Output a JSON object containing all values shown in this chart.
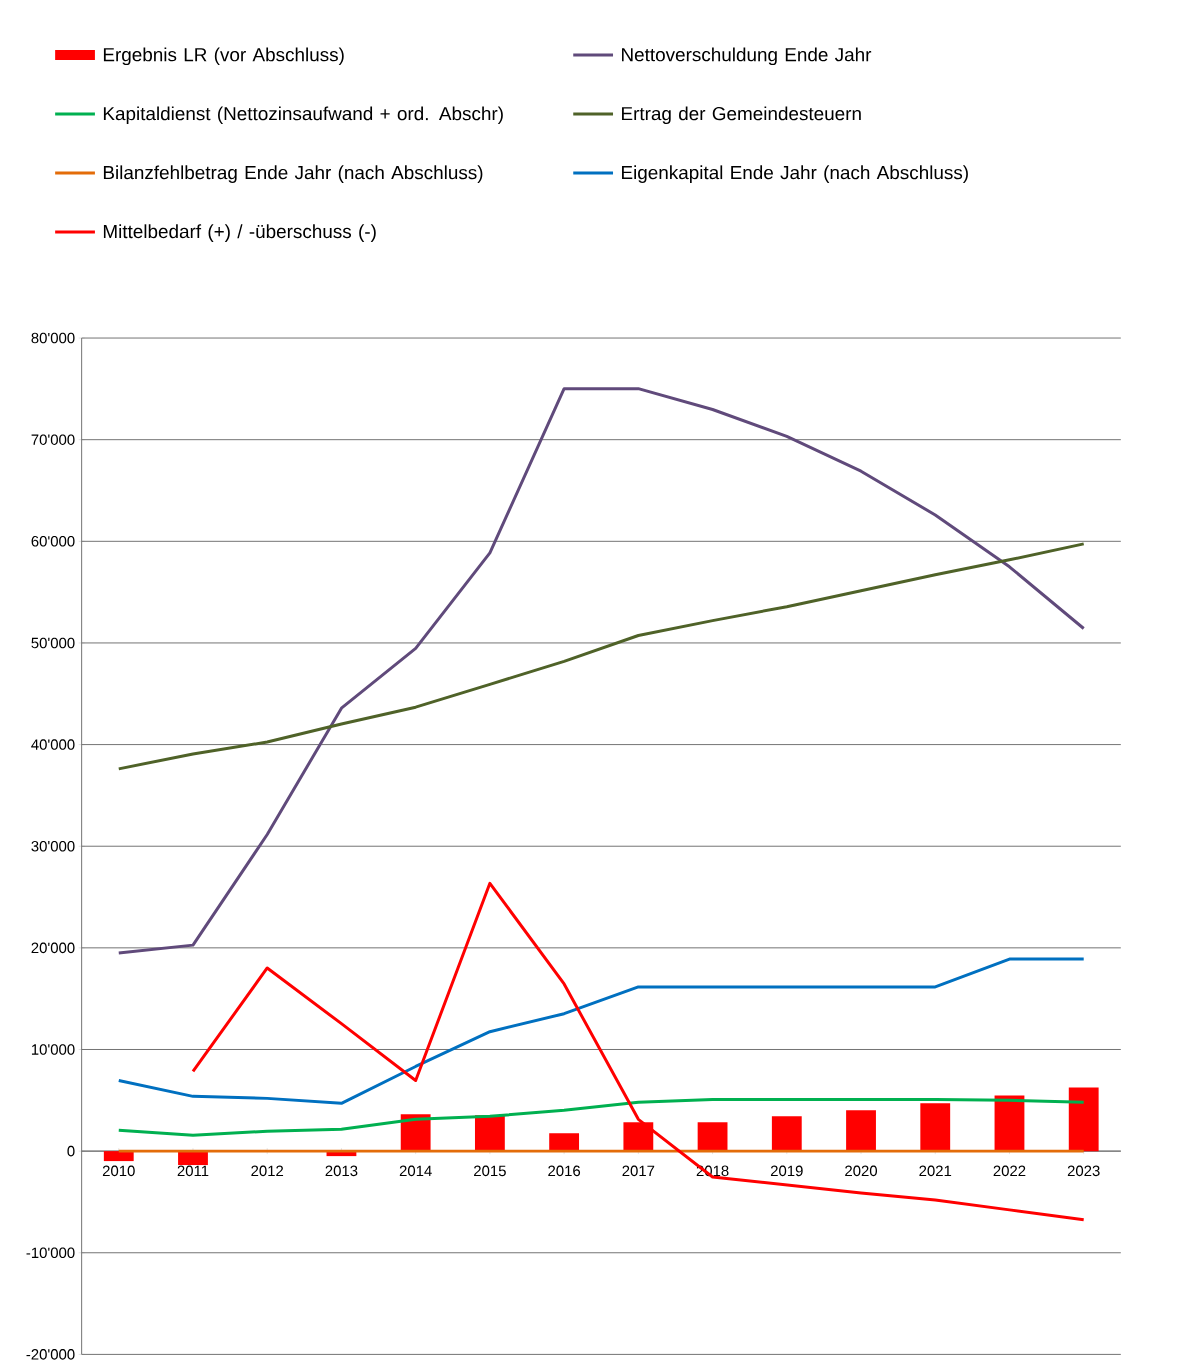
{
  "chart_data": {
    "type": "line",
    "categories": [
      "2010",
      "2011",
      "2012",
      "2013",
      "2014",
      "2015",
      "2016",
      "2017",
      "2018",
      "2019",
      "2020",
      "2021",
      "2022",
      "2023"
    ],
    "series": [
      {
        "name": "Ergebnis LR (vor Abschluss)",
        "type": "bar",
        "color": "#ff0000",
        "values": [
          -980,
          -1370,
          0,
          -490,
          3620,
          3530,
          1760,
          2840,
          2840,
          3430,
          4020,
          4700,
          5480,
          6270
        ]
      },
      {
        "name": "Nettoverschuldung Ende Jahr",
        "color": "#604a7b",
        "values": [
          19490,
          20270,
          31150,
          43580,
          49460,
          58860,
          75020,
          75020,
          72970,
          70320,
          66900,
          62590,
          57490,
          51420
        ]
      },
      {
        "name": "Kapitaldienst (Nettozinsaufwand + ord. Abschr)",
        "color": "#00b050",
        "values": [
          2060,
          1570,
          1960,
          2150,
          3130,
          3430,
          4020,
          4800,
          5090,
          5090,
          5090,
          5090,
          5000,
          4800
        ]
      },
      {
        "name": "Ertrag der Gemeindesteuern",
        "color": "#4f6228",
        "values": [
          37610,
          39080,
          40250,
          42020,
          43680,
          45930,
          48190,
          50730,
          52200,
          53570,
          55140,
          56710,
          58180,
          59750
        ]
      },
      {
        "name": "Bilanzfehlbetrag Ende Jahr (nach Abschluss)",
        "color": "#e36c09",
        "values": [
          0,
          0,
          0,
          0,
          0,
          0,
          0,
          0,
          0,
          0,
          0,
          0,
          0,
          0
        ]
      },
      {
        "name": "Eigenkapital Ende Jahr (nach Abschluss)",
        "color": "#0070c0",
        "values": [
          6950,
          5390,
          5190,
          4700,
          8330,
          11750,
          13520,
          16160,
          16160,
          16160,
          16160,
          16160,
          18900,
          18900
        ]
      },
      {
        "name": "Mittelbedarf (+) / -überschuss (-)",
        "color": "#ff0000",
        "values": [
          null,
          7840,
          18020,
          12540,
          6950,
          26350,
          16450,
          3130,
          -2550,
          -3330,
          -4110,
          -4800,
          -5780,
          -6760
        ]
      }
    ],
    "ylim": [
      -20000,
      80000
    ],
    "yticks": [
      {
        "value": -20000,
        "label": "-20'000"
      },
      {
        "value": -10000,
        "label": "-10'000"
      },
      {
        "value": 0,
        "label": "0"
      },
      {
        "value": 10000,
        "label": "10'000"
      },
      {
        "value": 20000,
        "label": "20'000"
      },
      {
        "value": 30000,
        "label": "30'000"
      },
      {
        "value": 40000,
        "label": "40'000"
      },
      {
        "value": 50000,
        "label": "50'000"
      },
      {
        "value": 60000,
        "label": "60'000"
      },
      {
        "value": 70000,
        "label": "70'000"
      },
      {
        "value": 80000,
        "label": "80'000"
      }
    ],
    "grid": "y",
    "legend": "top"
  }
}
